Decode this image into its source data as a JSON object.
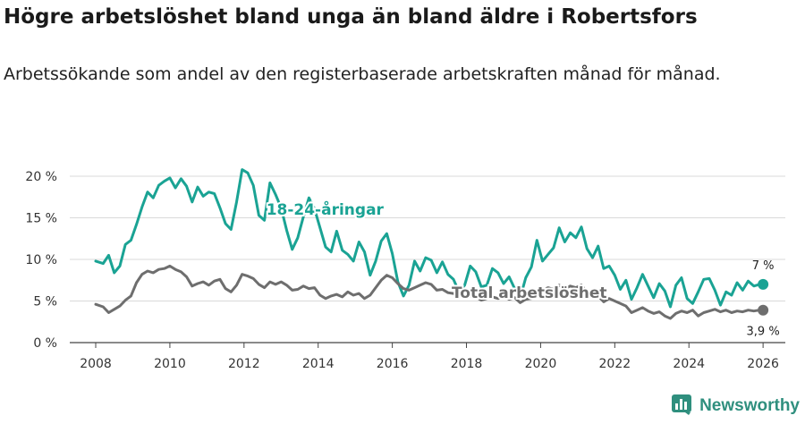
{
  "header": {
    "title": "Högre arbetslöshet bland unga än bland äldre i Robertsfors",
    "subtitle": "Arbetssökande som andel av den registerbaserade arbetskraften månad för månad."
  },
  "brand": {
    "name": "Newsworthy"
  },
  "colors": {
    "youth": "#1aa394",
    "total": "#6e6e6e",
    "grid": "#d9d9d9"
  },
  "chart_data": {
    "type": "line",
    "title": "Högre arbetslöshet bland unga än bland äldre i Robertsfors",
    "xlabel": "",
    "ylabel": "",
    "xlim": [
      2007.3,
      2026.6
    ],
    "ylim": [
      0,
      20
    ],
    "x_ticks": [
      {
        "value": 2008,
        "label": "2008"
      },
      {
        "value": 2010,
        "label": "2010"
      },
      {
        "value": 2012,
        "label": "2012"
      },
      {
        "value": 2014,
        "label": "2014"
      },
      {
        "value": 2016,
        "label": "2016"
      },
      {
        "value": 2018,
        "label": "2018"
      },
      {
        "value": 2020,
        "label": "2020"
      },
      {
        "value": 2022,
        "label": "2022"
      },
      {
        "value": 2024,
        "label": "2024"
      },
      {
        "value": 2026,
        "label": "2026"
      }
    ],
    "y_ticks": [
      {
        "value": 0,
        "label": "0 %"
      },
      {
        "value": 5,
        "label": "5 %"
      },
      {
        "value": 10,
        "label": "10 %"
      },
      {
        "value": 15,
        "label": "15 %"
      },
      {
        "value": 20,
        "label": "20 %"
      }
    ],
    "grid": true,
    "series": [
      {
        "name": "18-24-åringar",
        "label": "18-24-åringar",
        "end_label": "7 %",
        "x": [
          2008.0,
          2008.2,
          2008.35,
          2008.5,
          2008.65,
          2008.8,
          2008.95,
          2009.1,
          2009.25,
          2009.4,
          2009.55,
          2009.7,
          2009.85,
          2010.0,
          2010.15,
          2010.3,
          2010.45,
          2010.6,
          2010.75,
          2010.9,
          2011.05,
          2011.2,
          2011.35,
          2011.5,
          2011.65,
          2011.8,
          2011.95,
          2012.1,
          2012.25,
          2012.4,
          2012.55,
          2012.7,
          2012.85,
          2013.0,
          2013.15,
          2013.3,
          2013.45,
          2013.6,
          2013.75,
          2013.9,
          2014.05,
          2014.2,
          2014.35,
          2014.5,
          2014.65,
          2014.8,
          2014.95,
          2015.1,
          2015.25,
          2015.4,
          2015.55,
          2015.7,
          2015.85,
          2016.0,
          2016.15,
          2016.3,
          2016.45,
          2016.6,
          2016.75,
          2016.9,
          2017.05,
          2017.2,
          2017.35,
          2017.5,
          2017.65,
          2017.8,
          2017.95,
          2018.1,
          2018.25,
          2018.4,
          2018.55,
          2018.7,
          2018.85,
          2019.0,
          2019.15,
          2019.3,
          2019.45,
          2019.6,
          2019.75,
          2019.9,
          2020.05,
          2020.2,
          2020.35,
          2020.5,
          2020.65,
          2020.8,
          2020.95,
          2021.1,
          2021.25,
          2021.4,
          2021.55,
          2021.7,
          2021.85,
          2022.0,
          2022.15,
          2022.3,
          2022.45,
          2022.6,
          2022.75,
          2022.9,
          2023.05,
          2023.2,
          2023.35,
          2023.5,
          2023.65,
          2023.8,
          2023.95,
          2024.1,
          2024.25,
          2024.4,
          2024.55,
          2024.7,
          2024.85,
          2025.0,
          2025.15,
          2025.3,
          2025.45,
          2025.6,
          2025.75,
          2025.9,
          2026.0
        ],
        "values": [
          9.8,
          9.5,
          10.5,
          8.4,
          9.2,
          11.8,
          12.3,
          14.2,
          16.3,
          18.1,
          17.4,
          18.9,
          19.4,
          19.8,
          18.6,
          19.7,
          18.8,
          16.9,
          18.7,
          17.6,
          18.1,
          17.9,
          16.2,
          14.3,
          13.6,
          16.9,
          20.8,
          20.4,
          18.9,
          15.3,
          14.7,
          19.2,
          17.8,
          16.2,
          13.5,
          11.2,
          12.6,
          15.1,
          17.4,
          16.1,
          13.8,
          11.5,
          10.9,
          13.4,
          11.1,
          10.6,
          9.8,
          12.1,
          10.9,
          8.1,
          9.8,
          12.2,
          13.1,
          10.7,
          7.3,
          5.6,
          6.9,
          9.8,
          8.6,
          10.2,
          9.9,
          8.4,
          9.7,
          8.2,
          7.6,
          6.1,
          6.9,
          9.2,
          8.5,
          6.7,
          6.9,
          8.9,
          8.4,
          7.1,
          7.9,
          6.5,
          5.4,
          7.8,
          9.1,
          12.3,
          9.8,
          10.6,
          11.4,
          13.8,
          12.1,
          13.2,
          12.6,
          13.9,
          11.3,
          10.2,
          11.6,
          8.9,
          9.2,
          8.1,
          6.4,
          7.5,
          5.2,
          6.6,
          8.2,
          6.8,
          5.4,
          7.1,
          6.2,
          4.3,
          6.9,
          7.8,
          5.3,
          4.7,
          6.1,
          7.6,
          7.7,
          6.3,
          4.5,
          6.1,
          5.7,
          7.2,
          6.3,
          7.4,
          6.8,
          7.0,
          7.0
        ]
      },
      {
        "name": "Total arbetslöshet",
        "label": "Total arbetslöshet",
        "end_label": "3,9 %",
        "x": [
          2008.0,
          2008.2,
          2008.35,
          2008.5,
          2008.65,
          2008.8,
          2008.95,
          2009.1,
          2009.25,
          2009.4,
          2009.55,
          2009.7,
          2009.85,
          2010.0,
          2010.15,
          2010.3,
          2010.45,
          2010.6,
          2010.75,
          2010.9,
          2011.05,
          2011.2,
          2011.35,
          2011.5,
          2011.65,
          2011.8,
          2011.95,
          2012.1,
          2012.25,
          2012.4,
          2012.55,
          2012.7,
          2012.85,
          2013.0,
          2013.15,
          2013.3,
          2013.45,
          2013.6,
          2013.75,
          2013.9,
          2014.05,
          2014.2,
          2014.35,
          2014.5,
          2014.65,
          2014.8,
          2014.95,
          2015.1,
          2015.25,
          2015.4,
          2015.55,
          2015.7,
          2015.85,
          2016.0,
          2016.15,
          2016.3,
          2016.45,
          2016.6,
          2016.75,
          2016.9,
          2017.05,
          2017.2,
          2017.35,
          2017.5,
          2017.65,
          2017.8,
          2017.95,
          2018.1,
          2018.25,
          2018.4,
          2018.55,
          2018.7,
          2018.85,
          2019.0,
          2019.15,
          2019.3,
          2019.45,
          2019.6,
          2019.75,
          2019.9,
          2020.05,
          2020.2,
          2020.35,
          2020.5,
          2020.65,
          2020.8,
          2020.95,
          2021.1,
          2021.25,
          2021.4,
          2021.55,
          2021.7,
          2021.85,
          2022.0,
          2022.15,
          2022.3,
          2022.45,
          2022.6,
          2022.75,
          2022.9,
          2023.05,
          2023.2,
          2023.35,
          2023.5,
          2023.65,
          2023.8,
          2023.95,
          2024.1,
          2024.25,
          2024.4,
          2024.55,
          2024.7,
          2024.85,
          2025.0,
          2025.15,
          2025.3,
          2025.45,
          2025.6,
          2025.75,
          2025.9,
          2026.0
        ],
        "values": [
          4.6,
          4.3,
          3.6,
          4.0,
          4.4,
          5.1,
          5.6,
          7.2,
          8.2,
          8.6,
          8.4,
          8.8,
          8.9,
          9.2,
          8.8,
          8.5,
          7.9,
          6.8,
          7.1,
          7.3,
          6.9,
          7.4,
          7.6,
          6.5,
          6.1,
          6.9,
          8.2,
          8.0,
          7.7,
          7.0,
          6.6,
          7.3,
          7.0,
          7.3,
          6.9,
          6.3,
          6.4,
          6.8,
          6.5,
          6.6,
          5.7,
          5.3,
          5.6,
          5.8,
          5.5,
          6.1,
          5.7,
          5.9,
          5.3,
          5.7,
          6.6,
          7.5,
          8.1,
          7.8,
          7.1,
          6.5,
          6.3,
          6.6,
          6.9,
          7.2,
          7.0,
          6.3,
          6.4,
          6.0,
          5.9,
          5.7,
          5.8,
          5.6,
          5.5,
          5.1,
          5.3,
          5.5,
          5.3,
          5.6,
          5.2,
          5.4,
          4.8,
          5.2,
          5.3,
          5.7,
          6.3,
          6.6,
          6.4,
          6.9,
          6.5,
          6.8,
          6.6,
          6.9,
          6.1,
          5.8,
          5.6,
          4.9,
          5.3,
          5.0,
          4.7,
          4.4,
          3.6,
          3.9,
          4.2,
          3.8,
          3.5,
          3.7,
          3.2,
          2.9,
          3.5,
          3.8,
          3.6,
          3.9,
          3.2,
          3.6,
          3.8,
          4.0,
          3.7,
          3.9,
          3.6,
          3.8,
          3.7,
          3.9,
          3.8,
          3.9,
          3.9
        ]
      }
    ]
  }
}
